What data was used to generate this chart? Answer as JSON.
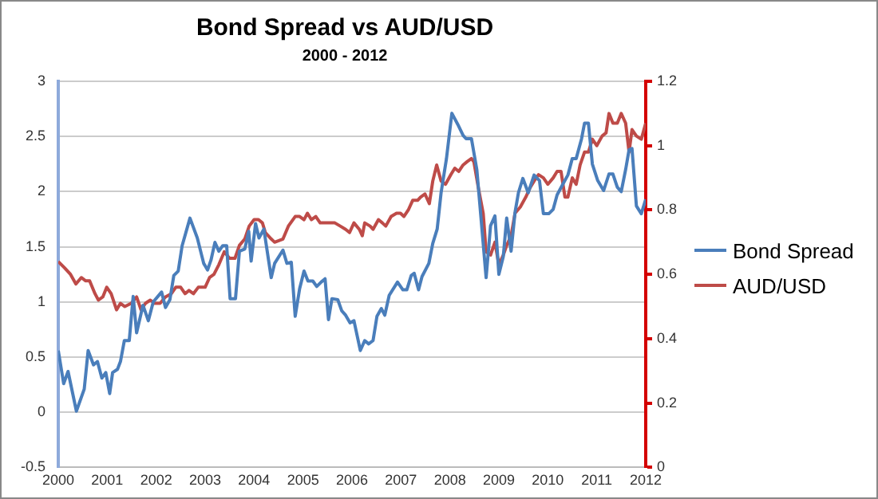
{
  "chart_data": {
    "type": "line",
    "title": "Bond Spread vs AUD/USD",
    "subtitle": "2000 - 2012",
    "legend": "right",
    "grid": "y",
    "marker": "none",
    "line_style": "solid",
    "xlim": [
      2000,
      2012
    ],
    "xticks": [
      2000,
      2001,
      2002,
      2003,
      2004,
      2005,
      2006,
      2007,
      2008,
      2009,
      2010,
      2011,
      2012
    ],
    "ylim": [
      -0.5,
      3
    ],
    "yticks": [
      -0.5,
      0,
      0.5,
      1,
      1.5,
      2,
      2.5,
      3
    ],
    "y2lim": [
      0,
      1.2
    ],
    "y2ticks": [
      0,
      0.2,
      0.4,
      0.6,
      0.8,
      1,
      1.2
    ],
    "series": [
      {
        "name": "Bond Spread",
        "color": "#4a7ebb",
        "x": [
          2000,
          2000.11,
          2000.2,
          2000.37,
          2000.53,
          2000.61,
          2000.72,
          2000.8,
          2000.89,
          2000.97,
          2001.05,
          2001.11,
          2001.21,
          2001.27,
          2001.35,
          2001.45,
          2001.53,
          2001.6,
          2001.73,
          2001.84,
          2001.94,
          2002.11,
          2002.19,
          2002.28,
          2002.36,
          2002.45,
          2002.53,
          2002.69,
          2002.84,
          2002.97,
          2003.05,
          2003.12,
          2003.2,
          2003.28,
          2003.36,
          2003.44,
          2003.51,
          2003.62,
          2003.7,
          2003.81,
          2003.89,
          2003.94,
          2004.03,
          2004.1,
          2004.2,
          2004.35,
          2004.42,
          2004.59,
          2004.67,
          2004.76,
          2004.84,
          2004.93,
          2005.02,
          2005.1,
          2005.2,
          2005.28,
          2005.37,
          2005.45,
          2005.52,
          2005.59,
          2005.71,
          2005.79,
          2005.87,
          2005.96,
          2006.04,
          2006.17,
          2006.26,
          2006.34,
          2006.43,
          2006.51,
          2006.6,
          2006.67,
          2006.76,
          2006.93,
          2007.04,
          2007.12,
          2007.21,
          2007.27,
          2007.36,
          2007.43,
          2007.57,
          2007.65,
          2007.74,
          2007.82,
          2007.93,
          2008.04,
          2008.16,
          2008.27,
          2008.33,
          2008.44,
          2008.55,
          2008.63,
          2008.74,
          2008.83,
          2008.92,
          2009,
          2009.09,
          2009.16,
          2009.25,
          2009.33,
          2009.4,
          2009.49,
          2009.6,
          2009.72,
          2009.83,
          2009.91,
          2010.02,
          2010.11,
          2010.19,
          2010.31,
          2010.41,
          2010.5,
          2010.58,
          2010.69,
          2010.75,
          2010.83,
          2010.91,
          2011.02,
          2011.14,
          2011.25,
          2011.33,
          2011.42,
          2011.5,
          2011.59,
          2011.66,
          2011.72,
          2011.81,
          2011.91,
          2012
        ],
        "values": [
          0.56,
          0.26,
          0.37,
          0.01,
          0.21,
          0.56,
          0.43,
          0.46,
          0.31,
          0.36,
          0.17,
          0.36,
          0.39,
          0.46,
          0.65,
          0.65,
          1.05,
          0.72,
          0.97,
          0.83,
          1.0,
          1.09,
          0.95,
          1.02,
          1.24,
          1.28,
          1.51,
          1.76,
          1.58,
          1.35,
          1.29,
          1.38,
          1.54,
          1.46,
          1.51,
          1.51,
          1.03,
          1.03,
          1.46,
          1.48,
          1.64,
          1.37,
          1.71,
          1.58,
          1.66,
          1.22,
          1.35,
          1.47,
          1.35,
          1.36,
          0.87,
          1.12,
          1.28,
          1.19,
          1.19,
          1.14,
          1.18,
          1.21,
          0.84,
          1.03,
          1.02,
          0.92,
          0.88,
          0.81,
          0.83,
          0.56,
          0.65,
          0.62,
          0.65,
          0.87,
          0.94,
          0.88,
          1.06,
          1.18,
          1.11,
          1.11,
          1.24,
          1.26,
          1.11,
          1.23,
          1.35,
          1.53,
          1.66,
          1.99,
          2.3,
          2.71,
          2.61,
          2.51,
          2.48,
          2.48,
          2.2,
          1.79,
          1.22,
          1.69,
          1.78,
          1.25,
          1.41,
          1.76,
          1.46,
          1.81,
          1.99,
          2.12,
          1.99,
          2.15,
          2.1,
          1.8,
          1.8,
          1.84,
          1.97,
          2.07,
          2.15,
          2.3,
          2.3,
          2.48,
          2.62,
          2.62,
          2.25,
          2.1,
          2.01,
          2.16,
          2.16,
          2.04,
          2.0,
          2.2,
          2.38,
          2.39,
          1.87,
          1.8,
          1.93
        ]
      },
      {
        "name": "AUD/USD",
        "color": "#be4b48",
        "axis": "y2",
        "x": [
          2000,
          2000.13,
          2000.25,
          2000.36,
          2000.47,
          2000.56,
          2000.64,
          2000.75,
          2000.82,
          2000.91,
          2000.99,
          2001.08,
          2001.19,
          2001.27,
          2001.36,
          2001.49,
          2001.6,
          2001.69,
          2001.78,
          2001.88,
          2001.97,
          2002.08,
          2002.19,
          2002.31,
          2002.4,
          2002.5,
          2002.59,
          2002.67,
          2002.76,
          2002.86,
          2003,
          2003.09,
          2003.18,
          2003.28,
          2003.39,
          2003.5,
          2003.61,
          2003.7,
          2003.81,
          2003.9,
          2004,
          2004.09,
          2004.17,
          2004.23,
          2004.35,
          2004.42,
          2004.59,
          2004.7,
          2004.84,
          2004.93,
          2005.02,
          2005.09,
          2005.17,
          2005.26,
          2005.35,
          2005.43,
          2005.54,
          2005.65,
          2005.76,
          2005.87,
          2005.95,
          2006.04,
          2006.15,
          2006.21,
          2006.26,
          2006.37,
          2006.43,
          2006.54,
          2006.62,
          2006.69,
          2006.8,
          2006.91,
          2006.99,
          2007.06,
          2007.15,
          2007.24,
          2007.34,
          2007.4,
          2007.49,
          2007.58,
          2007.65,
          2007.73,
          2007.82,
          2007.91,
          2008.02,
          2008.1,
          2008.18,
          2008.27,
          2008.35,
          2008.44,
          2008.49,
          2008.58,
          2008.68,
          2008.74,
          2008.83,
          2008.92,
          2009,
          2009.09,
          2009.16,
          2009.25,
          2009.33,
          2009.44,
          2009.55,
          2009.64,
          2009.72,
          2009.81,
          2009.91,
          2010,
          2010.11,
          2010.19,
          2010.27,
          2010.35,
          2010.41,
          2010.5,
          2010.58,
          2010.66,
          2010.75,
          2010.83,
          2010.91,
          2011,
          2011.11,
          2011.19,
          2011.25,
          2011.33,
          2011.42,
          2011.5,
          2011.59,
          2011.66,
          2011.72,
          2011.81,
          2011.91,
          2012
        ],
        "values": [
          0.64,
          0.62,
          0.6,
          0.57,
          0.59,
          0.58,
          0.58,
          0.54,
          0.52,
          0.53,
          0.56,
          0.54,
          0.49,
          0.51,
          0.5,
          0.51,
          0.53,
          0.49,
          0.51,
          0.52,
          0.51,
          0.51,
          0.53,
          0.54,
          0.56,
          0.56,
          0.54,
          0.55,
          0.54,
          0.56,
          0.56,
          0.59,
          0.6,
          0.63,
          0.67,
          0.65,
          0.65,
          0.69,
          0.71,
          0.75,
          0.77,
          0.77,
          0.76,
          0.73,
          0.71,
          0.7,
          0.71,
          0.75,
          0.78,
          0.78,
          0.77,
          0.79,
          0.77,
          0.78,
          0.76,
          0.76,
          0.76,
          0.76,
          0.75,
          0.74,
          0.73,
          0.76,
          0.74,
          0.72,
          0.76,
          0.75,
          0.74,
          0.77,
          0.76,
          0.75,
          0.78,
          0.79,
          0.79,
          0.78,
          0.8,
          0.83,
          0.83,
          0.84,
          0.85,
          0.82,
          0.89,
          0.94,
          0.89,
          0.88,
          0.91,
          0.93,
          0.92,
          0.94,
          0.95,
          0.96,
          0.95,
          0.87,
          0.79,
          0.67,
          0.66,
          0.7,
          0.63,
          0.66,
          0.69,
          0.72,
          0.79,
          0.81,
          0.84,
          0.87,
          0.89,
          0.91,
          0.9,
          0.88,
          0.9,
          0.92,
          0.92,
          0.84,
          0.84,
          0.9,
          0.88,
          0.94,
          0.98,
          0.98,
          1.02,
          1.0,
          1.03,
          1.04,
          1.1,
          1.07,
          1.07,
          1.1,
          1.07,
          0.98,
          1.05,
          1.03,
          1.02,
          1.07
        ]
      }
    ]
  }
}
